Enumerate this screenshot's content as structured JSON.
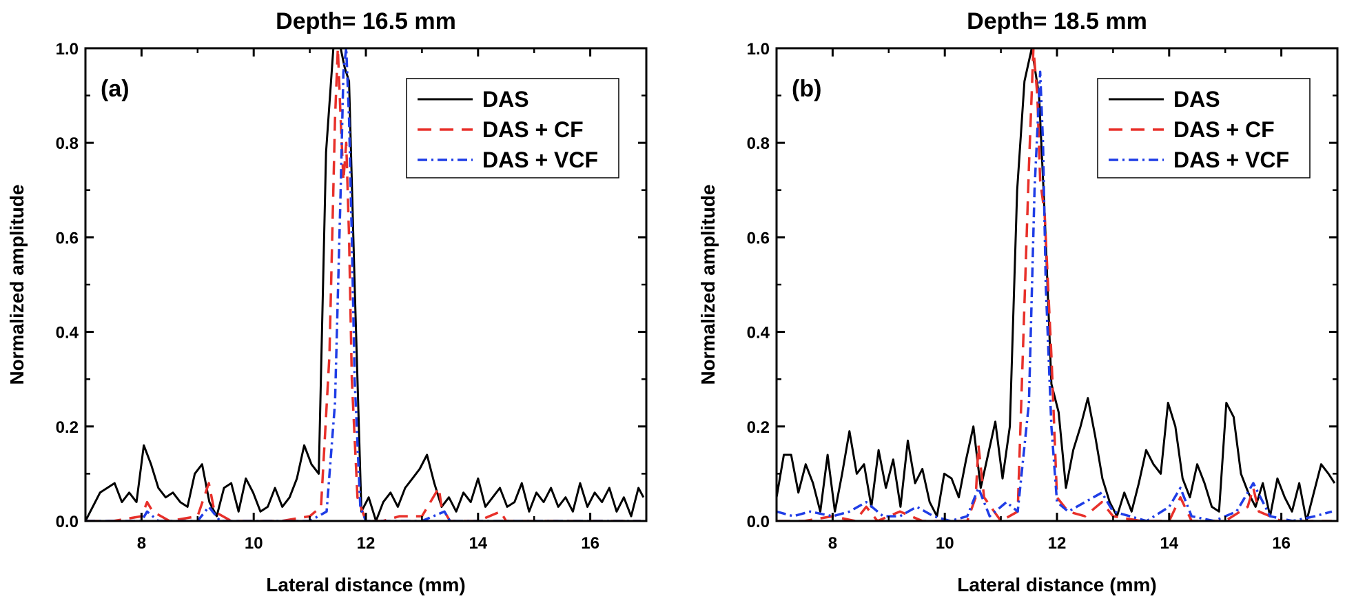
{
  "chart_data": [
    {
      "type": "line",
      "title": "Depth= 16.5 mm",
      "panel_label": "(a)",
      "xlabel": "Lateral distance (mm)",
      "ylabel": "Normalized amplitude",
      "xlim": [
        7,
        17
      ],
      "ylim": [
        0,
        1.0
      ],
      "xticks": [
        8,
        10,
        12,
        14,
        16
      ],
      "yticks": [
        0.0,
        0.2,
        0.4,
        0.6,
        0.8,
        1.0
      ],
      "legend_position": "top-right",
      "grid": false,
      "series": [
        {
          "name": "DAS",
          "color": "#000000",
          "dash": "solid",
          "x": [
            7.0,
            7.13,
            7.26,
            7.39,
            7.52,
            7.65,
            7.78,
            7.91,
            8.04,
            8.17,
            8.3,
            8.43,
            8.56,
            8.69,
            8.82,
            8.95,
            9.08,
            9.21,
            9.34,
            9.47,
            9.6,
            9.73,
            9.86,
            9.99,
            10.12,
            10.25,
            10.38,
            10.51,
            10.64,
            10.77,
            10.9,
            11.03,
            11.16,
            11.29,
            11.42,
            11.55,
            11.62,
            11.7,
            11.8,
            11.92,
            12.05,
            12.18,
            12.31,
            12.44,
            12.57,
            12.7,
            12.83,
            12.96,
            13.09,
            13.22,
            13.35,
            13.48,
            13.61,
            13.74,
            13.87,
            14.0,
            14.13,
            14.26,
            14.39,
            14.52,
            14.65,
            14.78,
            14.91,
            15.04,
            15.17,
            15.3,
            15.43,
            15.56,
            15.69,
            15.82,
            15.95,
            16.08,
            16.21,
            16.34,
            16.47,
            16.6,
            16.73,
            16.86,
            16.95
          ],
          "y": [
            0.0,
            0.03,
            0.06,
            0.07,
            0.08,
            0.04,
            0.06,
            0.04,
            0.16,
            0.12,
            0.07,
            0.05,
            0.06,
            0.04,
            0.03,
            0.1,
            0.12,
            0.04,
            0.01,
            0.07,
            0.08,
            0.02,
            0.09,
            0.06,
            0.02,
            0.03,
            0.07,
            0.03,
            0.05,
            0.09,
            0.16,
            0.12,
            0.1,
            0.78,
            1.0,
            1.0,
            0.96,
            0.93,
            0.5,
            0.02,
            0.05,
            0.0,
            0.04,
            0.06,
            0.03,
            0.07,
            0.09,
            0.11,
            0.14,
            0.08,
            0.03,
            0.05,
            0.02,
            0.06,
            0.04,
            0.09,
            0.03,
            0.05,
            0.07,
            0.03,
            0.04,
            0.08,
            0.02,
            0.06,
            0.04,
            0.07,
            0.03,
            0.05,
            0.02,
            0.08,
            0.03,
            0.06,
            0.04,
            0.07,
            0.02,
            0.05,
            0.01,
            0.07,
            0.05
          ]
        },
        {
          "name": "DAS + CF",
          "color": "#e8302a",
          "dash": "long-dash",
          "x": [
            7.0,
            7.5,
            8.0,
            8.1,
            8.2,
            8.5,
            9.0,
            9.2,
            9.3,
            9.6,
            10.0,
            10.5,
            11.0,
            11.2,
            11.35,
            11.45,
            11.5,
            11.55,
            11.6,
            11.65,
            11.7,
            11.75,
            11.85,
            12.0,
            12.3,
            12.6,
            13.0,
            13.3,
            13.35,
            13.5,
            14.0,
            14.4,
            14.5,
            15.0,
            15.5,
            16.0,
            16.5,
            16.9
          ],
          "y": [
            0.0,
            0.0,
            0.01,
            0.04,
            0.02,
            0.0,
            0.01,
            0.08,
            0.02,
            0.0,
            0.0,
            0.0,
            0.01,
            0.03,
            0.35,
            0.85,
            1.0,
            0.85,
            0.72,
            0.8,
            0.6,
            0.3,
            0.05,
            0.0,
            0.0,
            0.01,
            0.01,
            0.07,
            0.03,
            0.0,
            0.0,
            0.02,
            0.0,
            0.0,
            0.0,
            0.0,
            0.0,
            0.0
          ]
        },
        {
          "name": "DAS + VCF",
          "color": "#1f3de6",
          "dash": "dash-dot",
          "x": [
            7.0,
            7.5,
            8.0,
            8.1,
            8.3,
            9.0,
            9.2,
            9.4,
            10.0,
            10.5,
            11.0,
            11.3,
            11.45,
            11.55,
            11.6,
            11.65,
            11.7,
            11.75,
            11.8,
            11.9,
            12.0,
            12.5,
            13.0,
            13.4,
            13.5,
            14.0,
            14.5,
            15.0,
            15.5,
            16.0,
            16.5,
            16.9
          ],
          "y": [
            0.0,
            0.0,
            0.0,
            0.02,
            0.0,
            0.0,
            0.03,
            0.0,
            0.0,
            0.0,
            0.0,
            0.02,
            0.25,
            0.7,
            0.95,
            1.0,
            0.85,
            0.6,
            0.3,
            0.03,
            0.0,
            0.0,
            0.0,
            0.02,
            0.0,
            0.0,
            0.0,
            0.0,
            0.0,
            0.0,
            0.0,
            0.0
          ]
        }
      ]
    },
    {
      "type": "line",
      "title": "Depth= 18.5 mm",
      "panel_label": "(b)",
      "xlabel": "Lateral distance (mm)",
      "ylabel": "Normalized amplitude",
      "xlim": [
        7,
        17
      ],
      "ylim": [
        0,
        1.0
      ],
      "xticks": [
        8,
        10,
        12,
        14,
        16
      ],
      "yticks": [
        0.0,
        0.2,
        0.4,
        0.6,
        0.8,
        1.0
      ],
      "legend_position": "top-right",
      "grid": false,
      "series": [
        {
          "name": "DAS",
          "color": "#000000",
          "dash": "solid",
          "x": [
            7.0,
            7.13,
            7.26,
            7.39,
            7.52,
            7.65,
            7.78,
            7.91,
            8.04,
            8.17,
            8.3,
            8.43,
            8.56,
            8.69,
            8.82,
            8.95,
            9.08,
            9.21,
            9.34,
            9.47,
            9.6,
            9.73,
            9.86,
            9.99,
            10.12,
            10.25,
            10.38,
            10.51,
            10.64,
            10.77,
            10.9,
            11.03,
            11.16,
            11.29,
            11.42,
            11.55,
            11.68,
            11.78,
            11.9,
            12.03,
            12.16,
            12.29,
            12.42,
            12.55,
            12.68,
            12.81,
            12.94,
            13.07,
            13.2,
            13.33,
            13.46,
            13.59,
            13.72,
            13.85,
            13.98,
            14.11,
            14.24,
            14.37,
            14.5,
            14.63,
            14.76,
            14.89,
            15.02,
            15.15,
            15.28,
            15.41,
            15.54,
            15.67,
            15.8,
            15.93,
            16.06,
            16.19,
            16.32,
            16.45,
            16.58,
            16.71,
            16.84,
            16.95
          ],
          "y": [
            0.05,
            0.14,
            0.14,
            0.06,
            0.12,
            0.08,
            0.02,
            0.14,
            0.02,
            0.1,
            0.19,
            0.1,
            0.12,
            0.03,
            0.15,
            0.07,
            0.13,
            0.03,
            0.17,
            0.08,
            0.11,
            0.04,
            0.01,
            0.1,
            0.09,
            0.05,
            0.13,
            0.2,
            0.07,
            0.14,
            0.21,
            0.09,
            0.2,
            0.7,
            0.93,
            1.0,
            0.9,
            0.65,
            0.29,
            0.23,
            0.07,
            0.15,
            0.2,
            0.26,
            0.18,
            0.09,
            0.04,
            0.01,
            0.06,
            0.02,
            0.08,
            0.15,
            0.12,
            0.1,
            0.25,
            0.2,
            0.09,
            0.05,
            0.12,
            0.08,
            0.03,
            0.02,
            0.25,
            0.22,
            0.1,
            0.06,
            0.03,
            0.08,
            0.01,
            0.09,
            0.05,
            0.02,
            0.08,
            0.0,
            0.06,
            0.12,
            0.1,
            0.08
          ]
        },
        {
          "name": "DAS + CF",
          "color": "#e8302a",
          "dash": "long-dash",
          "x": [
            7.0,
            7.5,
            8.0,
            8.4,
            8.6,
            8.8,
            9.2,
            9.6,
            10.0,
            10.4,
            10.55,
            10.6,
            10.7,
            11.0,
            11.3,
            11.5,
            11.58,
            11.65,
            11.7,
            11.78,
            11.9,
            12.0,
            12.2,
            12.5,
            12.8,
            13.0,
            13.5,
            14.0,
            14.2,
            14.4,
            15.0,
            15.4,
            15.5,
            15.6,
            16.0,
            16.5,
            16.9
          ],
          "y": [
            0.0,
            0.0,
            0.01,
            0.0,
            0.03,
            0.0,
            0.02,
            0.0,
            0.0,
            0.0,
            0.05,
            0.16,
            0.05,
            0.0,
            0.02,
            0.75,
            1.0,
            0.9,
            0.72,
            0.65,
            0.35,
            0.05,
            0.02,
            0.01,
            0.04,
            0.01,
            0.0,
            0.0,
            0.05,
            0.0,
            0.0,
            0.03,
            0.07,
            0.02,
            0.0,
            0.0,
            0.0
          ]
        },
        {
          "name": "DAS + VCF",
          "color": "#1f3de6",
          "dash": "dash-dot",
          "x": [
            7.0,
            7.3,
            7.6,
            8.0,
            8.3,
            8.6,
            8.9,
            9.2,
            9.5,
            9.8,
            10.1,
            10.4,
            10.6,
            10.8,
            11.1,
            11.3,
            11.5,
            11.6,
            11.7,
            11.75,
            11.8,
            11.9,
            12.0,
            12.2,
            12.5,
            12.8,
            13.0,
            13.3,
            13.6,
            14.0,
            14.2,
            14.4,
            14.8,
            15.2,
            15.5,
            15.8,
            16.2,
            16.6,
            16.9
          ],
          "y": [
            0.02,
            0.01,
            0.02,
            0.01,
            0.02,
            0.04,
            0.01,
            0.01,
            0.03,
            0.01,
            0.0,
            0.01,
            0.07,
            0.01,
            0.04,
            0.02,
            0.25,
            0.7,
            0.95,
            0.8,
            0.5,
            0.2,
            0.04,
            0.02,
            0.04,
            0.06,
            0.02,
            0.01,
            0.0,
            0.03,
            0.07,
            0.01,
            0.0,
            0.02,
            0.08,
            0.01,
            0.0,
            0.01,
            0.02
          ]
        }
      ]
    }
  ]
}
